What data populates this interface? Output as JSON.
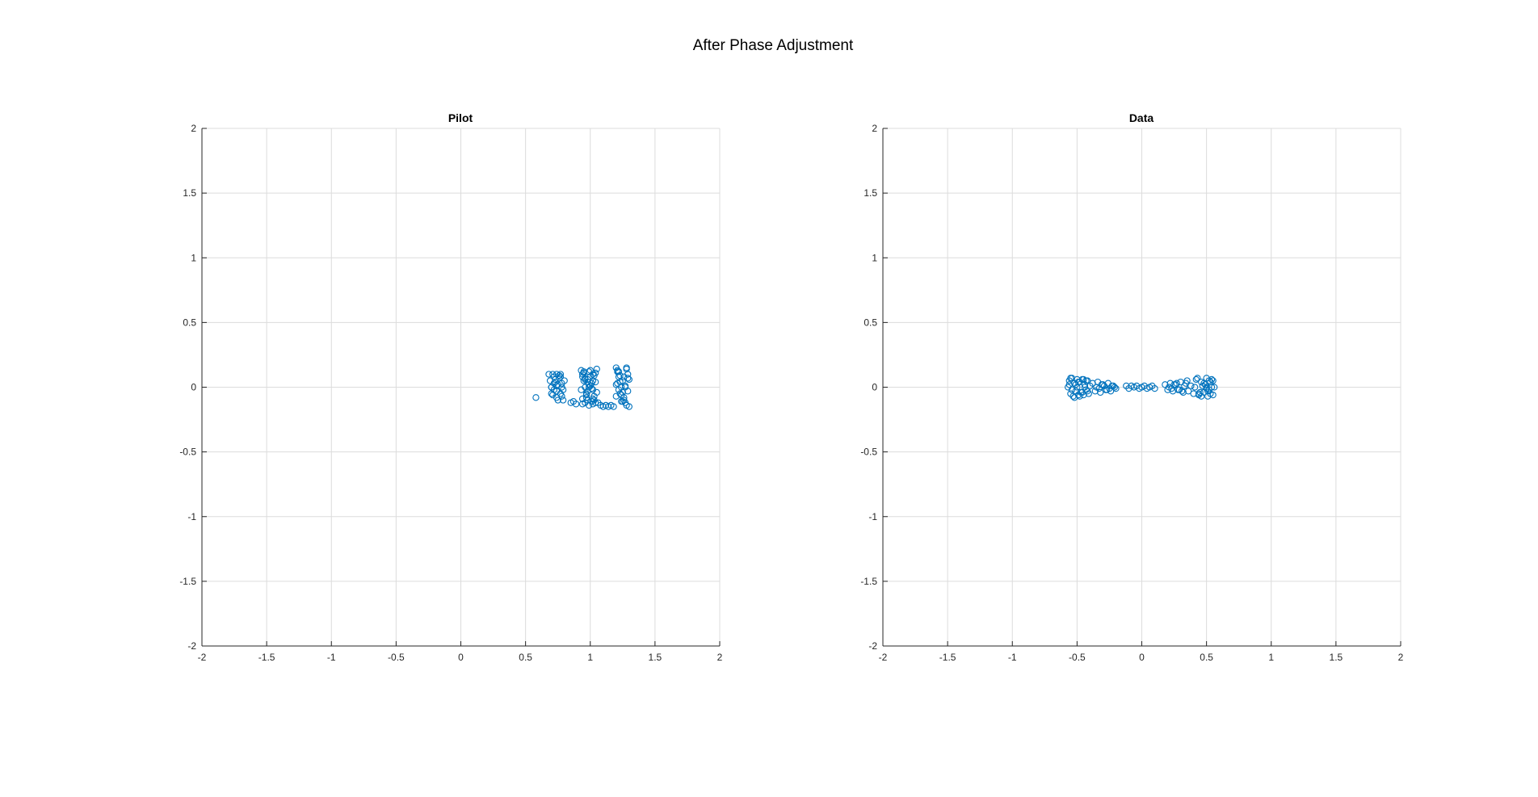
{
  "figure": {
    "title": "After Phase Adjustment"
  },
  "chart_data": [
    {
      "type": "scatter",
      "title": "Pilot",
      "xlabel": "",
      "ylabel": "",
      "xlim": [
        -2,
        2
      ],
      "ylim": [
        -2,
        2
      ],
      "xticks": [
        -2,
        -1.5,
        -1,
        -0.5,
        0,
        0.5,
        1,
        1.5,
        2
      ],
      "yticks": [
        -2,
        -1.5,
        -1,
        -0.5,
        0,
        0.5,
        1,
        1.5,
        2
      ],
      "xtick_labels": [
        "-2",
        "-1.5",
        "-1",
        "-0.5",
        "0",
        "0.5",
        "1",
        "1.5",
        "2"
      ],
      "ytick_labels": [
        "-2",
        "-1.5",
        "-1",
        "-0.5",
        "0",
        "0.5",
        "1",
        "1.5",
        "2"
      ],
      "grid": true,
      "marker": "circle",
      "color": "#0072BD",
      "x": [
        0.58,
        0.68,
        0.69,
        0.7,
        0.7,
        0.71,
        0.72,
        0.72,
        0.73,
        0.74,
        0.74,
        0.75,
        0.76,
        0.77,
        0.77,
        0.78,
        0.79,
        0.8,
        0.72,
        0.74,
        0.76,
        0.78,
        0.71,
        0.73,
        0.75,
        0.77,
        0.79,
        0.7,
        0.74,
        0.78,
        0.85,
        0.87,
        0.89,
        0.93,
        0.94,
        0.95,
        0.96,
        0.97,
        0.98,
        0.99,
        1.0,
        1.01,
        1.02,
        1.03,
        1.04,
        1.05,
        0.94,
        0.96,
        0.98,
        1.0,
        1.02,
        1.04,
        0.95,
        0.97,
        0.99,
        1.01,
        1.03,
        0.93,
        0.96,
        0.99,
        1.02,
        1.05,
        0.94,
        0.97,
        1.0,
        1.03,
        0.95,
        0.98,
        1.01,
        1.04,
        0.96,
        0.99,
        1.02,
        0.94,
        0.98,
        1.02,
        1.06,
        1.08,
        1.1,
        1.12,
        1.14,
        1.16,
        1.18,
        1.2,
        1.21,
        1.22,
        1.23,
        1.24,
        1.25,
        1.26,
        1.27,
        1.28,
        1.29,
        1.3,
        1.2,
        1.22,
        1.24,
        1.26,
        1.28,
        1.21,
        1.23,
        1.25,
        1.27,
        1.29,
        1.2,
        1.24,
        1.28,
        1.22,
        1.26,
        1.3,
        1.21,
        1.25,
        1.29,
        1.23,
        1.27
      ],
      "y": [
        -0.08,
        0.1,
        0.05,
        0.0,
        -0.05,
        0.1,
        0.08,
        -0.02,
        0.04,
        0.1,
        -0.08,
        0.02,
        0.07,
        -0.05,
        0.1,
        0.0,
        -0.1,
        0.05,
        0.03,
        -0.03,
        0.09,
        -0.07,
        -0.06,
        0.06,
        -0.1,
        0.08,
        -0.02,
        0.0,
        0.01,
        0.03,
        -0.12,
        -0.11,
        -0.13,
        0.13,
        0.1,
        0.05,
        0.0,
        -0.05,
        -0.1,
        0.12,
        0.08,
        0.03,
        -0.02,
        -0.07,
        -0.12,
        0.14,
        -0.13,
        0.07,
        -0.03,
        0.13,
        -0.09,
        0.04,
        0.11,
        -0.08,
        0.02,
        -0.11,
        0.09,
        -0.02,
        0.06,
        -0.14,
        0.1,
        -0.04,
        0.08,
        -0.06,
        0.01,
        -0.1,
        0.12,
        0.04,
        -0.01,
        0.11,
        -0.12,
        0.0,
        0.05,
        -0.09,
        0.06,
        -0.13,
        -0.12,
        -0.14,
        -0.15,
        -0.14,
        -0.15,
        -0.14,
        -0.15,
        0.15,
        0.12,
        0.08,
        0.04,
        0.0,
        -0.04,
        -0.08,
        -0.12,
        0.14,
        0.1,
        0.06,
        0.02,
        -0.02,
        -0.06,
        -0.1,
        -0.14,
        0.13,
        0.09,
        0.05,
        0.01,
        -0.03,
        -0.07,
        -0.11,
        0.15,
        0.12,
        0.08,
        -0.15,
        0.03,
        -0.11,
        0.07,
        -0.05,
        0.0
      ],
      "n_points_approx": 500
    },
    {
      "type": "scatter",
      "title": "Data",
      "xlabel": "",
      "ylabel": "",
      "xlim": [
        -2,
        2
      ],
      "ylim": [
        -2,
        2
      ],
      "xticks": [
        -2,
        -1.5,
        -1,
        -0.5,
        0,
        0.5,
        1,
        1.5,
        2
      ],
      "yticks": [
        -2,
        -1.5,
        -1,
        -0.5,
        0,
        0.5,
        1,
        1.5,
        2
      ],
      "xtick_labels": [
        "-2",
        "-1.5",
        "-1",
        "-0.5",
        "0",
        "0.5",
        "1",
        "1.5",
        "2"
      ],
      "ytick_labels": [
        "-2",
        "-1.5",
        "-1",
        "-0.5",
        "0",
        "0.5",
        "1",
        "1.5",
        "2"
      ],
      "grid": true,
      "marker": "circle",
      "color": "#0072BD",
      "x": [
        -0.57,
        -0.56,
        -0.55,
        -0.54,
        -0.53,
        -0.52,
        -0.51,
        -0.5,
        -0.49,
        -0.48,
        -0.47,
        -0.46,
        -0.45,
        -0.44,
        -0.43,
        -0.42,
        -0.41,
        -0.4,
        -0.55,
        -0.52,
        -0.49,
        -0.46,
        -0.43,
        -0.54,
        -0.51,
        -0.48,
        -0.45,
        -0.42,
        -0.56,
        -0.5,
        -0.44,
        -0.38,
        -0.36,
        -0.34,
        -0.32,
        -0.3,
        -0.28,
        -0.26,
        -0.24,
        -0.22,
        -0.2,
        -0.35,
        -0.31,
        -0.27,
        -0.23,
        -0.33,
        -0.29,
        -0.25,
        -0.21,
        -0.12,
        -0.1,
        -0.08,
        -0.06,
        -0.04,
        -0.02,
        0.0,
        0.02,
        0.04,
        0.06,
        0.08,
        0.1,
        0.18,
        0.2,
        0.22,
        0.24,
        0.26,
        0.28,
        0.3,
        0.32,
        0.34,
        0.36,
        0.38,
        0.21,
        0.25,
        0.29,
        0.33,
        0.23,
        0.27,
        0.31,
        0.35,
        0.4,
        0.42,
        0.44,
        0.46,
        0.48,
        0.5,
        0.51,
        0.52,
        0.53,
        0.54,
        0.55,
        0.56,
        0.43,
        0.46,
        0.49,
        0.52,
        0.55,
        0.44,
        0.47,
        0.5,
        0.53,
        0.45,
        0.48,
        0.51,
        0.54,
        0.41,
        0.5
      ],
      "y": [
        0.0,
        0.05,
        -0.05,
        0.07,
        -0.07,
        0.03,
        -0.03,
        0.06,
        -0.06,
        0.04,
        -0.04,
        0.06,
        -0.06,
        0.02,
        -0.02,
        0.05,
        -0.05,
        0.01,
        0.07,
        -0.08,
        0.04,
        -0.04,
        0.05,
        -0.02,
        0.02,
        -0.07,
        0.06,
        -0.03,
        0.02,
        0.0,
        0.0,
        0.03,
        -0.03,
        0.04,
        -0.04,
        0.02,
        -0.02,
        0.03,
        -0.03,
        0.01,
        -0.01,
        0.0,
        0.02,
        -0.02,
        0.01,
        -0.01,
        0.01,
        -0.01,
        0.0,
        0.01,
        -0.01,
        0.01,
        0.0,
        0.01,
        -0.01,
        0.0,
        0.01,
        -0.01,
        0.0,
        0.01,
        -0.01,
        0.02,
        -0.02,
        0.03,
        -0.03,
        0.02,
        -0.02,
        0.04,
        -0.04,
        0.03,
        -0.03,
        0.01,
        0.0,
        0.02,
        -0.02,
        0.01,
        -0.01,
        0.03,
        -0.03,
        0.05,
        -0.05,
        0.06,
        -0.06,
        0.04,
        -0.04,
        0.07,
        -0.07,
        0.05,
        -0.05,
        0.06,
        -0.06,
        0.0,
        0.07,
        -0.07,
        0.02,
        -0.02,
        0.05,
        -0.05,
        0.01,
        -0.01,
        0.04,
        -0.04,
        0.03,
        -0.03,
        0.0,
        0.0,
        0.0
      ],
      "n_points_approx": 500
    }
  ]
}
